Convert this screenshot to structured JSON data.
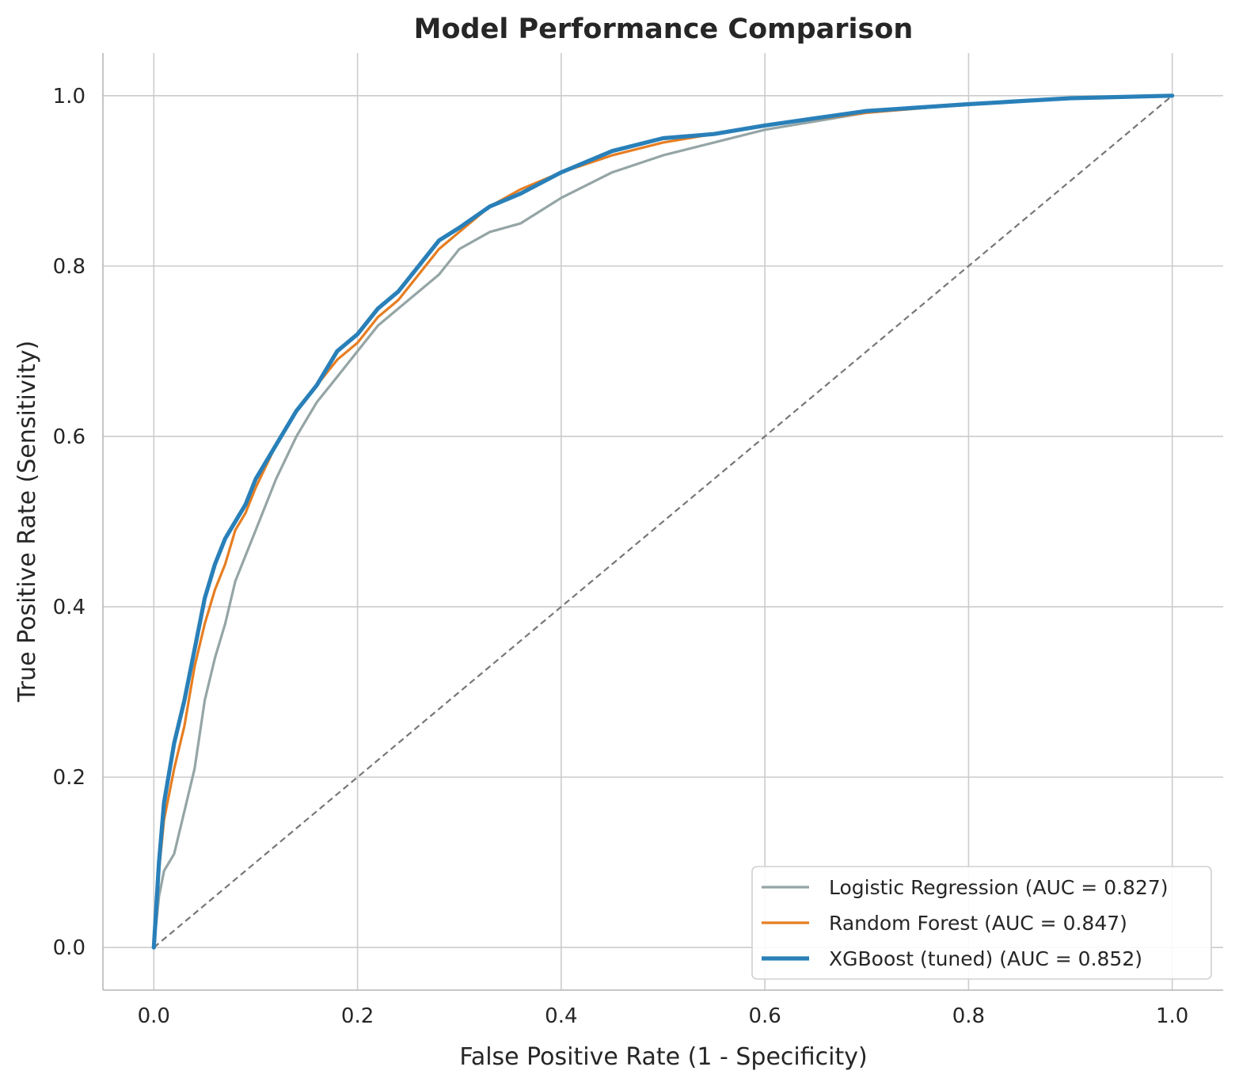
{
  "chart_data": {
    "type": "line",
    "title": "Model Performance Comparison",
    "xlabel": "False Positive Rate (1 - Specificity)",
    "ylabel": "True Positive Rate (Sensitivity)",
    "xlim": [
      -0.05,
      1.05
    ],
    "ylim": [
      -0.05,
      1.05
    ],
    "xticks": [
      0.0,
      0.2,
      0.4,
      0.6,
      0.8,
      1.0
    ],
    "yticks": [
      0.0,
      0.2,
      0.4,
      0.6,
      0.8,
      1.0
    ],
    "xtick_labels": [
      "0.0",
      "0.2",
      "0.4",
      "0.6",
      "0.8",
      "1.0"
    ],
    "ytick_labels": [
      "0.0",
      "0.2",
      "0.4",
      "0.6",
      "0.8",
      "1.0"
    ],
    "grid": true,
    "legend_position": "lower-right",
    "series": [
      {
        "name": "Logistic Regression (AUC = 0.827)",
        "color": "#95a5a6",
        "width": "normal",
        "x": [
          0.0,
          0.005,
          0.01,
          0.02,
          0.03,
          0.04,
          0.05,
          0.06,
          0.07,
          0.08,
          0.09,
          0.1,
          0.12,
          0.14,
          0.16,
          0.18,
          0.2,
          0.22,
          0.24,
          0.26,
          0.28,
          0.3,
          0.33,
          0.36,
          0.4,
          0.45,
          0.5,
          0.55,
          0.6,
          0.7,
          0.8,
          0.9,
          1.0
        ],
        "y": [
          0.0,
          0.06,
          0.09,
          0.11,
          0.16,
          0.21,
          0.29,
          0.34,
          0.38,
          0.43,
          0.46,
          0.49,
          0.55,
          0.6,
          0.64,
          0.67,
          0.7,
          0.73,
          0.75,
          0.77,
          0.79,
          0.82,
          0.84,
          0.85,
          0.88,
          0.91,
          0.93,
          0.945,
          0.96,
          0.98,
          0.99,
          0.997,
          1.0
        ]
      },
      {
        "name": "Random Forest (AUC = 0.847)",
        "color": "#e67e22",
        "width": "normal",
        "x": [
          0.0,
          0.005,
          0.01,
          0.02,
          0.03,
          0.04,
          0.05,
          0.06,
          0.07,
          0.08,
          0.09,
          0.1,
          0.12,
          0.14,
          0.16,
          0.18,
          0.2,
          0.22,
          0.24,
          0.26,
          0.28,
          0.3,
          0.33,
          0.36,
          0.4,
          0.45,
          0.5,
          0.55,
          0.6,
          0.7,
          0.8,
          0.9,
          1.0
        ],
        "y": [
          0.0,
          0.09,
          0.15,
          0.21,
          0.26,
          0.33,
          0.38,
          0.42,
          0.45,
          0.49,
          0.51,
          0.54,
          0.59,
          0.63,
          0.66,
          0.69,
          0.71,
          0.74,
          0.76,
          0.79,
          0.82,
          0.84,
          0.87,
          0.89,
          0.91,
          0.93,
          0.945,
          0.955,
          0.965,
          0.98,
          0.99,
          0.997,
          1.0
        ]
      },
      {
        "name": "XGBoost (tuned) (AUC = 0.852)",
        "color": "#2980b9",
        "width": "thick",
        "x": [
          0.0,
          0.005,
          0.01,
          0.02,
          0.03,
          0.04,
          0.05,
          0.06,
          0.07,
          0.08,
          0.09,
          0.1,
          0.12,
          0.14,
          0.16,
          0.18,
          0.2,
          0.22,
          0.24,
          0.26,
          0.28,
          0.3,
          0.33,
          0.36,
          0.4,
          0.45,
          0.5,
          0.55,
          0.6,
          0.7,
          0.8,
          0.9,
          1.0
        ],
        "y": [
          0.0,
          0.1,
          0.17,
          0.24,
          0.29,
          0.35,
          0.41,
          0.45,
          0.48,
          0.5,
          0.52,
          0.55,
          0.59,
          0.63,
          0.66,
          0.7,
          0.72,
          0.75,
          0.77,
          0.8,
          0.83,
          0.845,
          0.87,
          0.885,
          0.91,
          0.935,
          0.95,
          0.955,
          0.965,
          0.982,
          0.99,
          0.997,
          1.0
        ]
      }
    ],
    "reference_line": {
      "x": [
        0.0,
        1.0
      ],
      "y": [
        0.0,
        1.0
      ],
      "color": "#777777",
      "style": "dashed"
    }
  }
}
